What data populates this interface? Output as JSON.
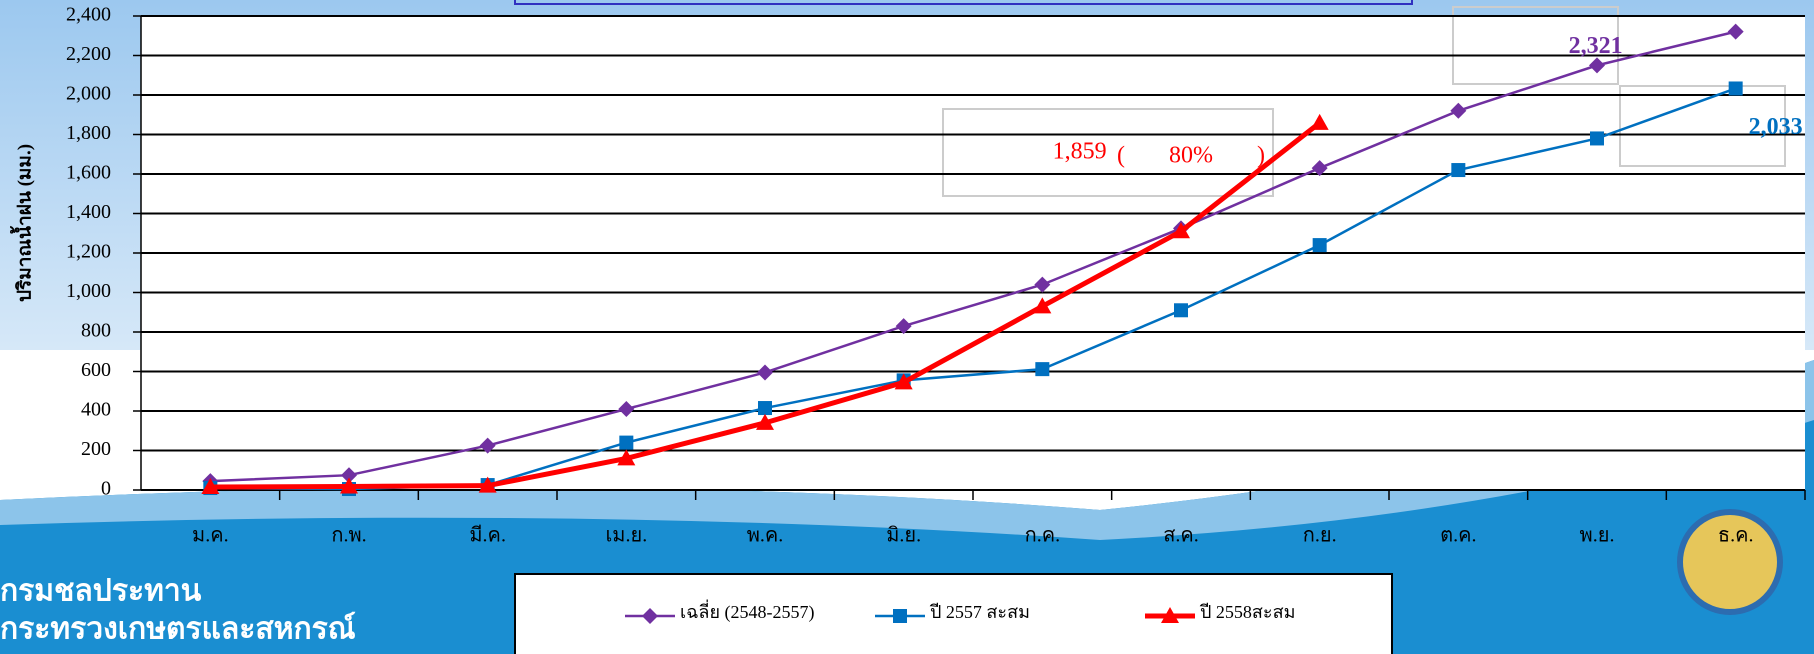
{
  "chart_data": {
    "type": "line",
    "y_label": "ปริมาณน้ำฝน (มม.)",
    "categories": [
      "ม.ค.",
      "ก.พ.",
      "มี.ค.",
      "เม.ย.",
      "พ.ค.",
      "มิ.ย.",
      "ก.ค.",
      "ส.ค.",
      "ก.ย.",
      "ต.ค.",
      "พ.ย.",
      "ธ.ค."
    ],
    "series": [
      {
        "name": "เฉลี่ย (2548-2557)",
        "color": "#7030a0",
        "marker": "diamond",
        "values": [
          45,
          75,
          225,
          410,
          595,
          830,
          1040,
          1325,
          1630,
          1920,
          2150,
          2321
        ],
        "value_labels": [
          null,
          null,
          null,
          null,
          null,
          null,
          null,
          null,
          null,
          null,
          null,
          "2,321"
        ]
      },
      {
        "name": "ปี 2557 สะสม",
        "color": "#0070c0",
        "marker": "square",
        "values": [
          10,
          5,
          25,
          240,
          415,
          555,
          612,
          910,
          1240,
          1620,
          1780,
          2033
        ],
        "value_labels": [
          null,
          null,
          null,
          null,
          null,
          null,
          null,
          null,
          null,
          null,
          null,
          "2,033"
        ]
      },
      {
        "name": "ปี 2558สะสม",
        "color": "#ff0000",
        "marker": "triangle",
        "values": [
          15,
          18,
          22,
          160,
          340,
          545,
          930,
          1310,
          1859,
          null,
          null,
          null
        ],
        "value_labels": [
          null,
          null,
          null,
          null,
          null,
          null,
          null,
          null,
          "1,859",
          null,
          null,
          null
        ]
      }
    ],
    "annotations": [
      "(",
      "80%",
      ")"
    ],
    "ylim": [
      0,
      2400
    ],
    "yticks": [
      0,
      {
        "value": 200,
        "label": "200"
      },
      400,
      600,
      800,
      {
        "value": 1000,
        "label": "1,000"
      },
      {
        "value": 1200,
        "label": "1,200"
      },
      {
        "value": 1400,
        "label": "1,400"
      },
      {
        "value": 1600,
        "label": "1,600"
      },
      {
        "value": 1800,
        "label": "1,800"
      },
      {
        "value": 2000,
        "label": "2,000"
      },
      {
        "value": 2200,
        "label": "2,200"
      },
      {
        "value": 2400,
        "label": "2,400"
      }
    ],
    "grid": true
  },
  "footer": {
    "org": "กรมชลประทาน",
    "ministry": "กระทรวงเกษตรและสหกรณ์"
  }
}
